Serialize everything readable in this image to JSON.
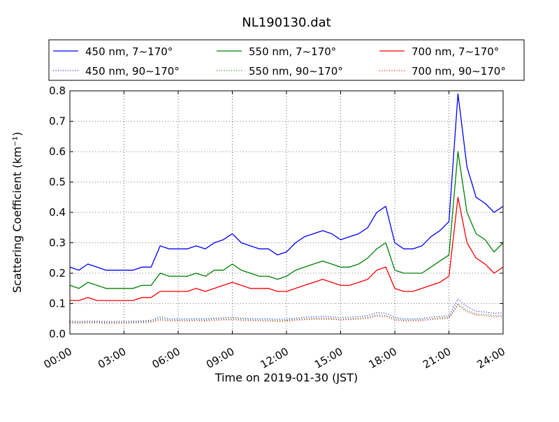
{
  "chart_data": {
    "type": "line",
    "title": "NL190130.dat",
    "xlabel": "Time on 2019-01-30 (JST)",
    "ylabel": "Scattering Coefficient (km⁻¹)",
    "x_ticks": [
      "00:00",
      "03:00",
      "06:00",
      "09:00",
      "12:00",
      "15:00",
      "18:00",
      "21:00",
      "24:00"
    ],
    "y_ticks": [
      "0.0",
      "0.1",
      "0.2",
      "0.3",
      "0.4",
      "0.5",
      "0.6",
      "0.7",
      "0.8"
    ],
    "xlim_hours": [
      0,
      24
    ],
    "ylim": [
      0,
      0.8
    ],
    "grid": true,
    "legend_placement": "top, above plot",
    "x_hours": [
      0,
      0.5,
      1,
      1.5,
      2,
      2.5,
      3,
      3.5,
      4,
      4.5,
      5,
      5.5,
      6,
      6.5,
      7,
      7.5,
      8,
      8.5,
      9,
      9.5,
      10,
      10.5,
      11,
      11.5,
      12,
      12.5,
      13,
      13.5,
      14,
      14.5,
      15,
      15.5,
      16,
      16.5,
      17,
      17.5,
      18,
      18.5,
      19,
      19.5,
      20,
      20.5,
      21,
      21.5,
      22,
      22.5,
      23,
      23.5,
      24
    ],
    "series": [
      {
        "name": "450 nm, 7∼170°",
        "color": "#0000ff",
        "style": "solid",
        "values": [
          0.22,
          0.21,
          0.23,
          0.22,
          0.21,
          0.21,
          0.21,
          0.21,
          0.22,
          0.22,
          0.29,
          0.28,
          0.28,
          0.28,
          0.29,
          0.28,
          0.3,
          0.31,
          0.33,
          0.3,
          0.29,
          0.28,
          0.28,
          0.26,
          0.27,
          0.3,
          0.32,
          0.33,
          0.34,
          0.33,
          0.31,
          0.32,
          0.33,
          0.35,
          0.4,
          0.42,
          0.3,
          0.28,
          0.28,
          0.29,
          0.32,
          0.34,
          0.37,
          0.79,
          0.55,
          0.45,
          0.43,
          0.4,
          0.42
        ]
      },
      {
        "name": "450 nm, 90∼170°",
        "color": "#0000ff",
        "style": "dotted",
        "values": [
          0.042,
          0.041,
          0.042,
          0.042,
          0.041,
          0.041,
          0.041,
          0.042,
          0.043,
          0.045,
          0.056,
          0.05,
          0.05,
          0.05,
          0.051,
          0.05,
          0.052,
          0.053,
          0.055,
          0.052,
          0.051,
          0.05,
          0.05,
          0.048,
          0.049,
          0.052,
          0.055,
          0.056,
          0.058,
          0.056,
          0.054,
          0.055,
          0.057,
          0.06,
          0.07,
          0.068,
          0.055,
          0.05,
          0.05,
          0.051,
          0.055,
          0.058,
          0.06,
          0.115,
          0.09,
          0.075,
          0.072,
          0.068,
          0.07
        ]
      },
      {
        "name": "550 nm, 7∼170°",
        "color": "#008000",
        "style": "solid",
        "values": [
          0.16,
          0.15,
          0.17,
          0.16,
          0.15,
          0.15,
          0.15,
          0.15,
          0.16,
          0.16,
          0.2,
          0.19,
          0.19,
          0.19,
          0.2,
          0.19,
          0.21,
          0.21,
          0.23,
          0.21,
          0.2,
          0.19,
          0.19,
          0.18,
          0.19,
          0.21,
          0.22,
          0.23,
          0.24,
          0.23,
          0.22,
          0.22,
          0.23,
          0.25,
          0.28,
          0.3,
          0.21,
          0.2,
          0.2,
          0.2,
          0.22,
          0.24,
          0.26,
          0.6,
          0.4,
          0.33,
          0.31,
          0.27,
          0.3
        ]
      },
      {
        "name": "550 nm, 90∼170°",
        "color": "#008000",
        "style": "dotted",
        "values": [
          0.039,
          0.038,
          0.039,
          0.039,
          0.038,
          0.038,
          0.038,
          0.039,
          0.04,
          0.042,
          0.05,
          0.046,
          0.046,
          0.046,
          0.047,
          0.046,
          0.048,
          0.049,
          0.05,
          0.048,
          0.047,
          0.046,
          0.046,
          0.044,
          0.045,
          0.048,
          0.05,
          0.051,
          0.052,
          0.051,
          0.049,
          0.05,
          0.052,
          0.054,
          0.063,
          0.061,
          0.05,
          0.046,
          0.046,
          0.047,
          0.05,
          0.053,
          0.055,
          0.1,
          0.078,
          0.066,
          0.064,
          0.06,
          0.062
        ]
      },
      {
        "name": "700 nm, 7∼170°",
        "color": "#ff0000",
        "style": "solid",
        "values": [
          0.11,
          0.11,
          0.12,
          0.11,
          0.11,
          0.11,
          0.11,
          0.11,
          0.12,
          0.12,
          0.14,
          0.14,
          0.14,
          0.14,
          0.15,
          0.14,
          0.15,
          0.16,
          0.17,
          0.16,
          0.15,
          0.15,
          0.15,
          0.14,
          0.14,
          0.15,
          0.16,
          0.17,
          0.18,
          0.17,
          0.16,
          0.16,
          0.17,
          0.18,
          0.21,
          0.22,
          0.15,
          0.14,
          0.14,
          0.15,
          0.16,
          0.17,
          0.19,
          0.45,
          0.3,
          0.25,
          0.23,
          0.2,
          0.22
        ]
      },
      {
        "name": "700 nm, 90∼170°",
        "color": "#ff0000",
        "style": "dotted",
        "values": [
          0.036,
          0.035,
          0.036,
          0.036,
          0.035,
          0.035,
          0.035,
          0.036,
          0.037,
          0.039,
          0.046,
          0.043,
          0.043,
          0.043,
          0.044,
          0.043,
          0.045,
          0.046,
          0.047,
          0.045,
          0.044,
          0.043,
          0.043,
          0.041,
          0.042,
          0.045,
          0.047,
          0.048,
          0.049,
          0.048,
          0.046,
          0.047,
          0.049,
          0.051,
          0.059,
          0.057,
          0.046,
          0.043,
          0.043,
          0.044,
          0.047,
          0.05,
          0.052,
          0.095,
          0.073,
          0.062,
          0.06,
          0.056,
          0.058
        ]
      }
    ]
  }
}
